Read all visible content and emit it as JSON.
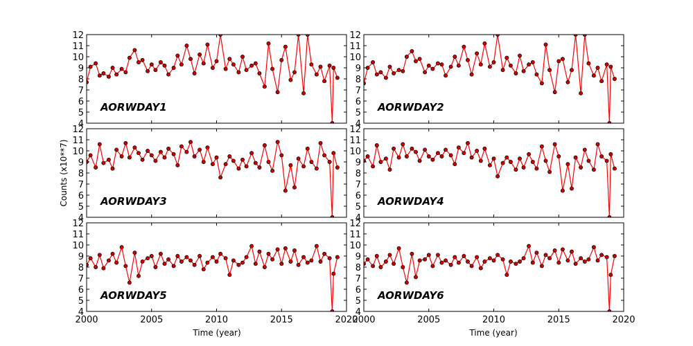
{
  "figure": {
    "ylabel": "Counts (x10**7)",
    "xlabel": "Time (year)"
  },
  "colors": {
    "line": "#ff0000",
    "marker_fill": "#cc0000",
    "marker_edge": "#000000",
    "axes": "#000000"
  },
  "chart_data": [
    {
      "type": "line",
      "title": "AORWDAY1",
      "xlim": [
        2000,
        2020
      ],
      "ylim": [
        4,
        12
      ],
      "x_ticks": [
        "2000",
        "2005",
        "2010",
        "2015",
        "2020"
      ],
      "y_ticks": [
        "4",
        "5",
        "6",
        "7",
        "8",
        "9",
        "10",
        "11",
        "12"
      ],
      "grid": false,
      "series": [
        {
          "x": [
            2000.0,
            2000.3,
            2000.7,
            2001.0,
            2001.3,
            2001.7,
            2002.0,
            2002.3,
            2002.7,
            2003.0,
            2003.3,
            2003.7,
            2004.0,
            2004.3,
            2004.7,
            2005.0,
            2005.3,
            2005.7,
            2006.0,
            2006.3,
            2006.7,
            2007.0,
            2007.3,
            2007.7,
            2008.0,
            2008.3,
            2008.7,
            2009.0,
            2009.3,
            2009.7,
            2010.0,
            2010.3,
            2010.7,
            2011.0,
            2011.3,
            2011.7,
            2012.0,
            2012.3,
            2012.7,
            2013.0,
            2013.3,
            2013.7,
            2014.0,
            2014.3,
            2014.7,
            2015.0,
            2015.3,
            2015.7,
            2016.0,
            2016.3,
            2016.7,
            2017.0,
            2017.3,
            2017.7,
            2018.0,
            2018.3,
            2018.7,
            2018.9,
            2019.0,
            2019.3
          ],
          "y": [
            7.7,
            9.1,
            9.4,
            8.3,
            8.5,
            8.2,
            9.0,
            8.4,
            8.9,
            8.6,
            9.9,
            10.6,
            9.5,
            9.7,
            8.7,
            9.3,
            8.8,
            9.5,
            9.2,
            8.4,
            9.0,
            10.1,
            9.3,
            11.0,
            9.8,
            8.5,
            10.2,
            9.4,
            11.1,
            9.0,
            9.6,
            12.0,
            8.9,
            9.8,
            9.3,
            8.6,
            10.0,
            8.8,
            9.2,
            9.4,
            8.5,
            7.3,
            11.2,
            8.9,
            6.8,
            9.7,
            10.9,
            7.9,
            8.6,
            12.0,
            6.7,
            12.0,
            9.3,
            8.4,
            9.1,
            7.8,
            9.2,
            4.0,
            9.0,
            8.1
          ]
        }
      ]
    },
    {
      "type": "line",
      "title": "AORWDAY2",
      "xlim": [
        2000,
        2020
      ],
      "ylim": [
        4,
        12
      ],
      "x_ticks": [
        "2000",
        "2005",
        "2010",
        "2015",
        "2020"
      ],
      "y_ticks": [
        "4",
        "5",
        "6",
        "7",
        "8",
        "9",
        "10",
        "11",
        "12"
      ],
      "grid": false,
      "series": [
        {
          "x": [
            2000.0,
            2000.3,
            2000.7,
            2001.0,
            2001.3,
            2001.7,
            2002.0,
            2002.3,
            2002.7,
            2003.0,
            2003.3,
            2003.7,
            2004.0,
            2004.3,
            2004.7,
            2005.0,
            2005.3,
            2005.7,
            2006.0,
            2006.3,
            2006.7,
            2007.0,
            2007.3,
            2007.7,
            2008.0,
            2008.3,
            2008.7,
            2009.0,
            2009.3,
            2009.7,
            2010.0,
            2010.3,
            2010.7,
            2011.0,
            2011.3,
            2011.7,
            2012.0,
            2012.3,
            2012.7,
            2013.0,
            2013.3,
            2013.7,
            2014.0,
            2014.3,
            2014.7,
            2015.0,
            2015.3,
            2015.7,
            2016.0,
            2016.3,
            2016.7,
            2017.0,
            2017.3,
            2017.7,
            2018.0,
            2018.3,
            2018.7,
            2018.9,
            2019.0,
            2019.3
          ],
          "y": [
            7.6,
            9.0,
            9.5,
            8.4,
            8.6,
            8.1,
            9.1,
            8.5,
            8.8,
            8.7,
            10.0,
            10.5,
            9.6,
            9.8,
            8.6,
            9.2,
            8.9,
            9.4,
            9.3,
            8.3,
            9.1,
            10.0,
            9.2,
            10.9,
            9.7,
            8.4,
            10.3,
            9.3,
            11.2,
            9.1,
            9.5,
            12.0,
            8.8,
            9.9,
            9.2,
            8.5,
            10.1,
            8.7,
            9.3,
            9.5,
            8.4,
            7.6,
            11.1,
            8.8,
            6.8,
            9.6,
            9.8,
            7.7,
            8.8,
            12.0,
            6.7,
            12.0,
            9.4,
            8.3,
            9.0,
            7.8,
            9.3,
            4.0,
            9.1,
            8.0
          ]
        }
      ]
    },
    {
      "type": "line",
      "title": "AORWDAY3",
      "xlim": [
        2000,
        2020
      ],
      "ylim": [
        4,
        12
      ],
      "x_ticks": [
        "2000",
        "2005",
        "2010",
        "2015",
        "2020"
      ],
      "y_ticks": [
        "4",
        "5",
        "6",
        "7",
        "8",
        "9",
        "10",
        "11",
        "12"
      ],
      "grid": false,
      "series": [
        {
          "x": [
            2000.0,
            2000.3,
            2000.7,
            2001.0,
            2001.3,
            2001.7,
            2002.0,
            2002.3,
            2002.7,
            2003.0,
            2003.3,
            2003.7,
            2004.0,
            2004.3,
            2004.7,
            2005.0,
            2005.3,
            2005.7,
            2006.0,
            2006.3,
            2006.7,
            2007.0,
            2007.3,
            2007.7,
            2008.0,
            2008.3,
            2008.7,
            2009.0,
            2009.3,
            2009.7,
            2010.0,
            2010.3,
            2010.7,
            2011.0,
            2011.3,
            2011.7,
            2012.0,
            2012.3,
            2012.7,
            2013.0,
            2013.3,
            2013.7,
            2014.0,
            2014.3,
            2014.7,
            2015.0,
            2015.3,
            2015.7,
            2016.0,
            2016.3,
            2016.7,
            2017.0,
            2017.3,
            2017.7,
            2018.0,
            2018.3,
            2018.7,
            2018.9,
            2019.0,
            2019.3
          ],
          "y": [
            9.0,
            9.6,
            8.5,
            10.6,
            8.9,
            9.2,
            8.4,
            10.1,
            9.5,
            10.7,
            9.4,
            10.3,
            9.8,
            9.2,
            10.0,
            9.6,
            9.1,
            9.9,
            9.4,
            10.2,
            9.7,
            8.7,
            10.4,
            9.9,
            10.8,
            9.5,
            10.1,
            9.0,
            10.3,
            8.8,
            9.4,
            7.6,
            8.8,
            9.5,
            9.1,
            8.4,
            9.2,
            8.6,
            9.8,
            8.9,
            8.5,
            10.5,
            9.0,
            8.2,
            10.8,
            9.6,
            6.4,
            8.7,
            6.7,
            9.3,
            8.6,
            10.2,
            9.0,
            8.4,
            10.7,
            9.6,
            9.0,
            4.0,
            9.8,
            8.5
          ]
        }
      ]
    },
    {
      "type": "line",
      "title": "AORWDAY4",
      "xlim": [
        2000,
        2020
      ],
      "ylim": [
        4,
        12
      ],
      "x_ticks": [
        "2000",
        "2005",
        "2010",
        "2015",
        "2020"
      ],
      "y_ticks": [
        "4",
        "5",
        "6",
        "7",
        "8",
        "9",
        "10",
        "11",
        "12"
      ],
      "grid": false,
      "series": [
        {
          "x": [
            2000.0,
            2000.3,
            2000.7,
            2001.0,
            2001.3,
            2001.7,
            2002.0,
            2002.3,
            2002.7,
            2003.0,
            2003.3,
            2003.7,
            2004.0,
            2004.3,
            2004.7,
            2005.0,
            2005.3,
            2005.7,
            2006.0,
            2006.3,
            2006.7,
            2007.0,
            2007.3,
            2007.7,
            2008.0,
            2008.3,
            2008.7,
            2009.0,
            2009.3,
            2009.7,
            2010.0,
            2010.3,
            2010.7,
            2011.0,
            2011.3,
            2011.7,
            2012.0,
            2012.3,
            2012.7,
            2013.0,
            2013.3,
            2013.7,
            2014.0,
            2014.3,
            2014.7,
            2015.0,
            2015.3,
            2015.7,
            2016.0,
            2016.3,
            2016.7,
            2017.0,
            2017.3,
            2017.7,
            2018.0,
            2018.3,
            2018.7,
            2018.9,
            2019.0,
            2019.3
          ],
          "y": [
            9.1,
            9.5,
            8.6,
            10.5,
            9.0,
            9.3,
            8.3,
            10.2,
            9.4,
            10.6,
            9.5,
            10.2,
            9.9,
            9.1,
            10.1,
            9.5,
            9.2,
            9.8,
            9.5,
            10.1,
            9.6,
            8.8,
            10.3,
            9.8,
            10.7,
            9.4,
            10.0,
            9.1,
            10.2,
            8.7,
            9.3,
            7.7,
            8.9,
            9.4,
            9.0,
            8.3,
            9.3,
            8.5,
            9.7,
            9.0,
            8.4,
            10.4,
            9.1,
            8.1,
            10.6,
            9.5,
            6.4,
            8.8,
            6.6,
            9.4,
            8.5,
            10.1,
            9.1,
            8.3,
            10.6,
            9.5,
            9.1,
            4.0,
            9.7,
            8.4
          ]
        }
      ]
    },
    {
      "type": "line",
      "title": "AORWDAY5",
      "xlim": [
        2000,
        2020
      ],
      "ylim": [
        4,
        12
      ],
      "x_ticks": [
        "2000",
        "2005",
        "2010",
        "2015",
        "2020"
      ],
      "y_ticks": [
        "4",
        "5",
        "6",
        "7",
        "8",
        "9",
        "10",
        "11",
        "12"
      ],
      "grid": false,
      "series": [
        {
          "x": [
            2000.0,
            2000.3,
            2000.7,
            2001.0,
            2001.3,
            2001.7,
            2002.0,
            2002.3,
            2002.7,
            2003.0,
            2003.3,
            2003.7,
            2004.0,
            2004.3,
            2004.7,
            2005.0,
            2005.3,
            2005.7,
            2006.0,
            2006.3,
            2006.7,
            2007.0,
            2007.3,
            2007.7,
            2008.0,
            2008.3,
            2008.7,
            2009.0,
            2009.3,
            2009.7,
            2010.0,
            2010.3,
            2010.7,
            2011.0,
            2011.3,
            2011.7,
            2012.0,
            2012.3,
            2012.7,
            2013.0,
            2013.3,
            2013.7,
            2014.0,
            2014.3,
            2014.7,
            2015.0,
            2015.3,
            2015.7,
            2016.0,
            2016.3,
            2016.7,
            2017.0,
            2017.3,
            2017.7,
            2018.0,
            2018.3,
            2018.7,
            2018.9,
            2019.0,
            2019.3
          ],
          "y": [
            8.2,
            8.8,
            8.0,
            9.1,
            7.9,
            8.6,
            9.2,
            8.4,
            9.8,
            8.1,
            6.6,
            9.3,
            7.2,
            8.5,
            8.8,
            9.0,
            8.0,
            9.2,
            8.3,
            8.7,
            8.1,
            9.0,
            8.5,
            8.9,
            8.6,
            8.2,
            9.0,
            7.8,
            8.4,
            8.9,
            8.5,
            9.2,
            8.8,
            7.3,
            8.6,
            8.2,
            8.4,
            8.9,
            9.9,
            8.3,
            9.4,
            8.0,
            9.2,
            8.7,
            9.6,
            8.3,
            9.7,
            8.5,
            9.5,
            8.2,
            8.9,
            8.4,
            8.6,
            9.9,
            8.5,
            9.2,
            8.8,
            4.0,
            7.4,
            8.9
          ]
        }
      ]
    },
    {
      "type": "line",
      "title": "AORWDAY6",
      "xlim": [
        2000,
        2020
      ],
      "ylim": [
        4,
        12
      ],
      "x_ticks": [
        "2000",
        "2005",
        "2010",
        "2015",
        "2020"
      ],
      "y_ticks": [
        "4",
        "5",
        "6",
        "7",
        "8",
        "9",
        "10",
        "11",
        "12"
      ],
      "grid": false,
      "series": [
        {
          "x": [
            2000.0,
            2000.3,
            2000.7,
            2001.0,
            2001.3,
            2001.7,
            2002.0,
            2002.3,
            2002.7,
            2003.0,
            2003.3,
            2003.7,
            2004.0,
            2004.3,
            2004.7,
            2005.0,
            2005.3,
            2005.7,
            2006.0,
            2006.3,
            2006.7,
            2007.0,
            2007.3,
            2007.7,
            2008.0,
            2008.3,
            2008.7,
            2009.0,
            2009.3,
            2009.7,
            2010.0,
            2010.3,
            2010.7,
            2011.0,
            2011.3,
            2011.7,
            2012.0,
            2012.3,
            2012.7,
            2013.0,
            2013.3,
            2013.7,
            2014.0,
            2014.3,
            2014.7,
            2015.0,
            2015.3,
            2015.7,
            2016.0,
            2016.3,
            2016.7,
            2017.0,
            2017.3,
            2017.7,
            2018.0,
            2018.3,
            2018.7,
            2018.9,
            2019.0,
            2019.3
          ],
          "y": [
            8.3,
            8.7,
            8.1,
            9.0,
            8.0,
            8.5,
            9.1,
            8.3,
            9.7,
            8.0,
            6.6,
            9.2,
            7.1,
            8.6,
            8.7,
            9.1,
            8.1,
            9.1,
            8.4,
            8.6,
            8.2,
            8.9,
            8.4,
            9.0,
            8.5,
            8.1,
            8.9,
            7.9,
            8.5,
            8.8,
            8.6,
            9.1,
            8.7,
            7.3,
            8.5,
            8.3,
            8.5,
            8.8,
            9.9,
            8.4,
            9.3,
            8.1,
            9.1,
            8.8,
            9.5,
            8.4,
            9.6,
            8.6,
            9.4,
            8.3,
            8.8,
            8.5,
            8.7,
            9.8,
            8.6,
            9.1,
            8.9,
            4.0,
            7.3,
            9.0
          ]
        }
      ]
    }
  ]
}
